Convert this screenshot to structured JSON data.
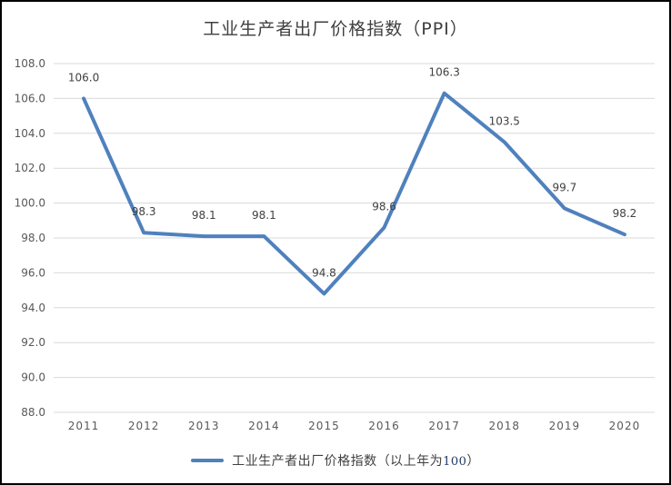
{
  "chart_data": {
    "type": "line",
    "title": "工业生产者出厂价格指数（PPI）",
    "categories": [
      "2011",
      "2012",
      "2013",
      "2014",
      "2015",
      "2016",
      "2017",
      "2018",
      "2019",
      "2020"
    ],
    "series": [
      {
        "name": "工业生产者出厂价格指数（以上年为100）",
        "values": [
          106.0,
          98.3,
          98.1,
          98.1,
          94.8,
          98.6,
          106.3,
          103.5,
          99.7,
          98.2
        ]
      }
    ],
    "data_labels": [
      "106.0",
      "98.3",
      "98.1",
      "98.1",
      "94.8",
      "98.6",
      "106.3",
      "103.5",
      "99.7",
      "98.2"
    ],
    "xlabel": "",
    "ylabel": "",
    "ylim": [
      88.0,
      108.0
    ],
    "ytick_step": 2.0,
    "ytick_labels": [
      "88.0",
      "90.0",
      "92.0",
      "94.0",
      "96.0",
      "98.0",
      "100.0",
      "102.0",
      "104.0",
      "106.0",
      "108.0"
    ],
    "grid": true,
    "legend_position": "bottom",
    "colors": {
      "line": "#4F81BD",
      "gridline": "#D9D9D9",
      "title_text": "#3F3F3F",
      "tick_text": "#595959",
      "data_label_text": "#404040",
      "legend_text": "#404040",
      "legend_number_text": "#1F3864",
      "background": "#FFFFFF",
      "border": "#000000"
    }
  },
  "legend": {
    "prefix": "工业生产者出厂价格指数（以上年为",
    "number": "100",
    "suffix": "）"
  }
}
